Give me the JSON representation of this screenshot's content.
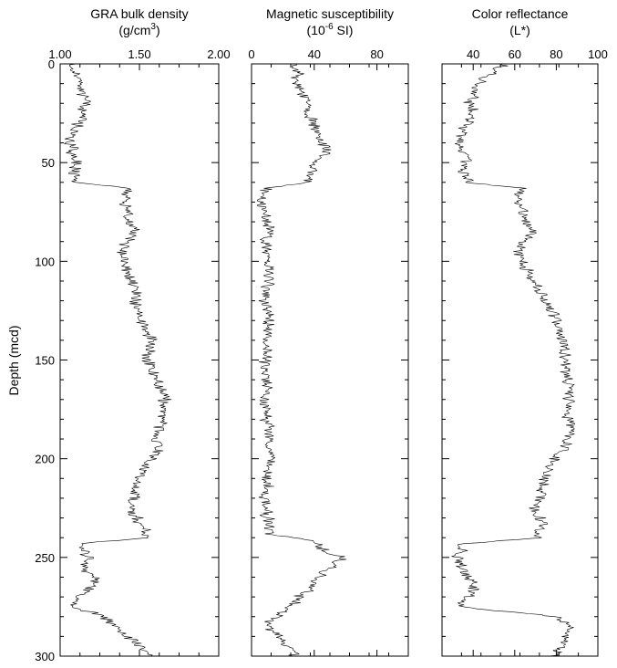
{
  "figure": {
    "ylabel": "Depth (mcd)",
    "y_ticks": [
      "0",
      "50",
      "100",
      "150",
      "200",
      "250",
      "300"
    ]
  },
  "chart_data": [
    {
      "type": "line",
      "title": "GRA bulk density",
      "unit_base": "(g/cm",
      "unit_sup": "3",
      "unit_tail": ")",
      "xlim": [
        1.0,
        2.0
      ],
      "x_ticks": [
        "1.00",
        "1.50",
        "2.00"
      ],
      "ylim": [
        0,
        300
      ],
      "y_reversed": true,
      "x_axis_position": "top",
      "series": [
        {
          "depth": [
            0,
            5,
            10,
            15,
            20,
            25,
            30,
            35,
            40,
            45,
            50,
            55,
            60,
            63,
            66,
            70,
            75,
            80,
            85,
            90,
            95,
            100,
            105,
            110,
            115,
            120,
            125,
            130,
            135,
            140,
            145,
            150,
            155,
            160,
            165,
            170,
            175,
            180,
            185,
            190,
            195,
            200,
            205,
            210,
            215,
            220,
            225,
            230,
            235,
            240,
            243,
            246,
            250,
            255,
            260,
            265,
            270,
            275,
            280,
            285,
            290,
            295,
            300
          ],
          "value": [
            1.08,
            1.1,
            1.12,
            1.14,
            1.16,
            1.13,
            1.12,
            1.08,
            1.06,
            1.08,
            1.1,
            1.09,
            1.11,
            1.45,
            1.42,
            1.4,
            1.43,
            1.44,
            1.47,
            1.43,
            1.38,
            1.4,
            1.42,
            1.45,
            1.48,
            1.47,
            1.5,
            1.52,
            1.55,
            1.58,
            1.56,
            1.55,
            1.58,
            1.62,
            1.65,
            1.66,
            1.64,
            1.65,
            1.62,
            1.6,
            1.63,
            1.58,
            1.52,
            1.5,
            1.48,
            1.46,
            1.45,
            1.48,
            1.52,
            1.55,
            1.12,
            1.15,
            1.18,
            1.14,
            1.22,
            1.2,
            1.12,
            1.08,
            1.28,
            1.35,
            1.42,
            1.5,
            1.58
          ]
        }
      ]
    },
    {
      "type": "line",
      "title": "Magnetic susceptibility",
      "unit_base": "(10",
      "unit_sup": "-6",
      "unit_tail": " SI)",
      "xlim": [
        0,
        100
      ],
      "x_ticks": [
        "0",
        "40",
        "80"
      ],
      "ylim": [
        0,
        300
      ],
      "y_reversed": true,
      "x_axis_position": "top",
      "series": [
        {
          "depth": [
            0,
            5,
            10,
            15,
            20,
            25,
            30,
            35,
            40,
            45,
            50,
            55,
            60,
            63,
            66,
            70,
            75,
            80,
            85,
            90,
            95,
            100,
            110,
            120,
            130,
            140,
            150,
            160,
            170,
            180,
            190,
            200,
            210,
            220,
            230,
            238,
            242,
            246,
            250,
            255,
            260,
            265,
            270,
            275,
            280,
            285,
            290,
            295,
            300
          ],
          "value": [
            25,
            30,
            28,
            32,
            38,
            35,
            40,
            42,
            45,
            48,
            40,
            38,
            35,
            10,
            8,
            6,
            8,
            10,
            12,
            8,
            10,
            12,
            10,
            9,
            11,
            10,
            9,
            10,
            9,
            10,
            11,
            12,
            10,
            9,
            10,
            12,
            40,
            45,
            58,
            50,
            42,
            38,
            30,
            25,
            15,
            10,
            18,
            22,
            28
          ]
        }
      ]
    },
    {
      "type": "line",
      "title": "Color reflectance",
      "unit_base": "(L*)",
      "unit_sup": "",
      "unit_tail": "",
      "xlim": [
        25,
        100
      ],
      "x_ticks": [
        "40",
        "60",
        "80",
        "100"
      ],
      "ylim": [
        0,
        300
      ],
      "y_reversed": true,
      "x_axis_position": "top",
      "series": [
        {
          "depth": [
            0,
            5,
            10,
            15,
            20,
            25,
            30,
            35,
            40,
            45,
            50,
            55,
            60,
            63,
            66,
            70,
            75,
            80,
            85,
            90,
            95,
            100,
            105,
            110,
            115,
            120,
            125,
            130,
            135,
            140,
            145,
            150,
            155,
            160,
            165,
            170,
            175,
            180,
            185,
            190,
            195,
            200,
            205,
            210,
            215,
            220,
            225,
            230,
            235,
            240,
            243,
            246,
            250,
            255,
            260,
            265,
            270,
            275,
            280,
            285,
            290,
            295,
            300
          ],
          "value": [
            55,
            48,
            42,
            40,
            38,
            40,
            37,
            35,
            33,
            35,
            37,
            35,
            38,
            65,
            62,
            60,
            64,
            66,
            68,
            65,
            62,
            64,
            66,
            70,
            72,
            74,
            78,
            80,
            82,
            83,
            84,
            85,
            84,
            86,
            87,
            86,
            85,
            86,
            87,
            86,
            84,
            80,
            76,
            74,
            73,
            72,
            70,
            72,
            74,
            70,
            36,
            35,
            32,
            35,
            38,
            40,
            37,
            33,
            82,
            85,
            84,
            82,
            78
          ]
        }
      ]
    }
  ]
}
